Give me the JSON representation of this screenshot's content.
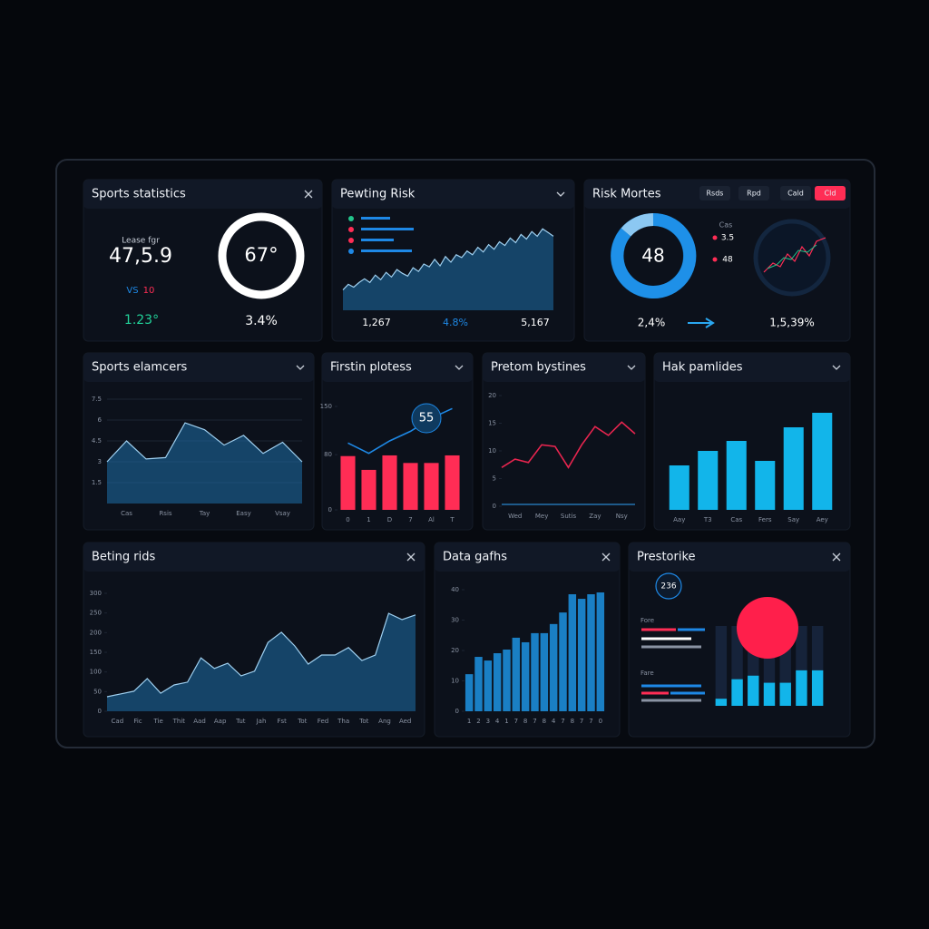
{
  "panels": [
    {
      "title": "Sports statistics",
      "label": "Lease fgr",
      "value": "47,5.9",
      "vs": "VS",
      "vs_value": "10",
      "change": "1.23°",
      "ring_label": "67°",
      "percent": "3.4%"
    },
    {
      "title": "Pewting Risk",
      "footer": [
        "1,267",
        "4.8%",
        "5,167"
      ],
      "chart": {
        "ylim": [
          0,
          100
        ],
        "series": [
          {
            "type": "area",
            "color": "#1e6fa8",
            "values": [
              22,
              28,
              25,
              30,
              34,
              30,
              38,
              33,
              41,
              36,
              44,
              40,
              37,
              46,
              42,
              50,
              47,
              55,
              48,
              58,
              52,
              60,
              57,
              64,
              60,
              68,
              63,
              71,
              66,
              74,
              70,
              78,
              73,
              82,
              77,
              85,
              80,
              88,
              84,
              80
            ]
          }
        ]
      }
    },
    {
      "title": "Risk Mortes",
      "buttons": [
        "Rsds",
        "Rpd",
        "Cald",
        "Cld"
      ],
      "donut_label": "48",
      "legend": [
        "Cas",
        "3.5",
        "48"
      ],
      "footer": [
        "2,4%",
        "1,5,39%"
      ]
    },
    {
      "title": "Sports elamcers",
      "chart": {
        "ylim": [
          0,
          7.5
        ],
        "yticks": [
          1.5,
          3,
          4.5,
          6,
          7.5
        ],
        "grid": true,
        "x_labels": [
          "Cas",
          "Rsis",
          "Tay",
          "Easy",
          "Vsay"
        ],
        "series": [
          {
            "type": "area",
            "color": "#1e6fa8",
            "values": [
              3,
              4.5,
              3.2,
              3.3,
              5.8,
              5.3,
              4.2,
              4.9,
              3.6,
              4.4,
              3.0
            ]
          }
        ]
      }
    },
    {
      "title": "Firstin plotess",
      "annotation": "55",
      "chart": {
        "ylim": [
          0,
          150
        ],
        "yticks": [
          0,
          80,
          150
        ],
        "x_labels": [
          "0",
          "1",
          "D",
          "7",
          "Al",
          "T"
        ],
        "series": [
          {
            "type": "bar",
            "color": "#ff2d55",
            "values": [
              78,
              58,
              79,
              68,
              68,
              79
            ]
          },
          {
            "type": "line",
            "color": "#1e88e5",
            "values": [
              97,
              82,
              100,
              114,
              133,
              147
            ]
          }
        ]
      }
    },
    {
      "title": "Pretom bystines",
      "chart": {
        "ylim": [
          0,
          20
        ],
        "yticks": [
          0,
          5,
          10,
          15,
          20
        ],
        "x_labels": [
          "Wed",
          "Mey",
          "Sutis",
          "Zay",
          "Nsy"
        ],
        "series": [
          {
            "type": "line",
            "color": "#e8254f",
            "values": [
              7.0,
              8.5,
              7.9,
              11.1,
              10.8,
              7.0,
              11.1,
              14.4,
              12.8,
              15.2,
              13.1
            ]
          }
        ]
      }
    },
    {
      "title": "Hak pamlides",
      "chart": {
        "ylim": [
          0,
          120
        ],
        "x_labels": [
          "Aay",
          "T3",
          "Cas",
          "Fers",
          "Say",
          "Aey"
        ],
        "series": [
          {
            "type": "bar",
            "color": "#12b5ea",
            "values": [
              49,
              65,
              76,
              54,
              91,
              107
            ]
          }
        ]
      }
    },
    {
      "title": "Beting rids",
      "chart": {
        "ylim": [
          0,
          300
        ],
        "yticks": [
          0,
          50,
          100,
          150,
          200,
          250,
          300
        ],
        "x_labels": [
          "Cad",
          "Fic",
          "Tie",
          "Thit",
          "Aad",
          "Aap",
          "Tut",
          "Jah",
          "Fst",
          "Tot",
          "Fed",
          "Tha",
          "Tot",
          "Ang",
          "Aed"
        ],
        "series": [
          {
            "type": "area",
            "color": "#1e6fa8",
            "values": [
              37,
              44,
              51,
              83,
              46,
              67,
              74,
              136,
              109,
              122,
              90,
              102,
              175,
              201,
              166,
              120,
              143,
              143,
              162,
              129,
              143,
              249,
              233,
              245
            ]
          }
        ]
      }
    },
    {
      "title": "Data gafhs",
      "chart": {
        "ylim": [
          0,
          40
        ],
        "yticks": [
          0,
          10,
          20,
          30,
          40
        ],
        "x_labels": [
          "1",
          "2",
          "3",
          "4",
          "1",
          "7",
          "8",
          "7",
          "8",
          "4",
          "7",
          "8",
          "7",
          "7",
          "0"
        ],
        "series": [
          {
            "type": "bar",
            "color": "#1a7fc4",
            "values": [
              12.2,
              17.9,
              16.7,
              19.1,
              20.3,
              24.2,
              22.7,
              25.7,
              25.7,
              28.7,
              32.5,
              38.5,
              37,
              38.5,
              39.1
            ]
          }
        ]
      }
    },
    {
      "title": "Prestorike",
      "badge": "236",
      "legend": [
        "Fore",
        "Fare"
      ],
      "chart": {
        "ylim": [
          0,
          90
        ],
        "series": [
          {
            "type": "bar",
            "color": "#12b5ea",
            "values": [
              8,
              30,
              34,
              26,
              26,
              40,
              40
            ]
          }
        ]
      }
    }
  ]
}
